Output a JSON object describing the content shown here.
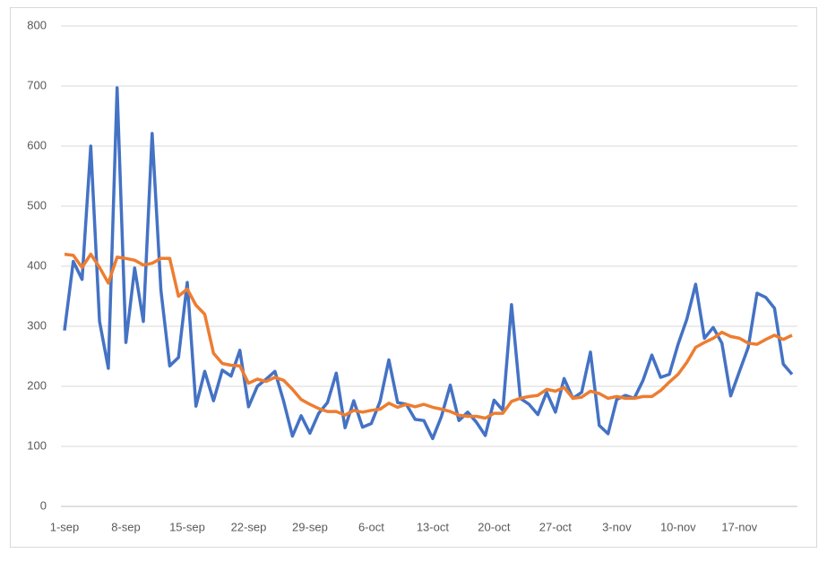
{
  "chart_data": {
    "type": "line",
    "categories": [
      "1-sep",
      null,
      null,
      null,
      null,
      null,
      null,
      "8-sep",
      null,
      null,
      null,
      null,
      null,
      null,
      "15-sep",
      null,
      null,
      null,
      null,
      null,
      null,
      "22-sep",
      null,
      null,
      null,
      null,
      null,
      null,
      "29-sep",
      null,
      null,
      null,
      null,
      null,
      null,
      "6-oct",
      null,
      null,
      null,
      null,
      null,
      null,
      "13-oct",
      null,
      null,
      null,
      null,
      null,
      null,
      "20-oct",
      null,
      null,
      null,
      null,
      null,
      null,
      "27-oct",
      null,
      null,
      null,
      null,
      null,
      null,
      "3-nov",
      null,
      null,
      null,
      null,
      null,
      null,
      "10-nov",
      null,
      null,
      null,
      null,
      null,
      null,
      "17-nov",
      null,
      null,
      null,
      null,
      null,
      null
    ],
    "series": [
      {
        "color": "#4472c4",
        "values": [
          293,
          408,
          378,
          600,
          308,
          230,
          697,
          273,
          397,
          308,
          621,
          360,
          234,
          248,
          373,
          167,
          225,
          176,
          227,
          217,
          260,
          166,
          200,
          212,
          225,
          175,
          117,
          151,
          122,
          155,
          173,
          222,
          131,
          176,
          132,
          138,
          175,
          244,
          173,
          170,
          145,
          143,
          113,
          150,
          202,
          143,
          157,
          140,
          118,
          177,
          160,
          336,
          180,
          170,
          153,
          190,
          157,
          213,
          180,
          190,
          257,
          135,
          121,
          178,
          185,
          180,
          210,
          252,
          215,
          220,
          270,
          312,
          370,
          280,
          298,
          272,
          184,
          225,
          265,
          355,
          348,
          330,
          237,
          220
        ]
      },
      {
        "color": "#ed7d31",
        "values": [
          420,
          418,
          398,
          420,
          398,
          372,
          415,
          413,
          410,
          402,
          405,
          413,
          413,
          350,
          362,
          335,
          320,
          255,
          238,
          235,
          234,
          205,
          212,
          208,
          215,
          210,
          195,
          178,
          170,
          163,
          158,
          158,
          152,
          160,
          157,
          160,
          162,
          172,
          165,
          170,
          166,
          170,
          165,
          162,
          158,
          152,
          150,
          150,
          147,
          155,
          155,
          175,
          180,
          183,
          185,
          195,
          192,
          198,
          180,
          182,
          192,
          188,
          180,
          183,
          180,
          180,
          183,
          183,
          193,
          207,
          220,
          240,
          265,
          273,
          280,
          290,
          283,
          280,
          272,
          270,
          278,
          285,
          278,
          285
        ]
      }
    ],
    "ylim": [
      0,
      800
    ],
    "yticks": [
      0,
      100,
      200,
      300,
      400,
      500,
      600,
      700,
      800
    ],
    "grid": true
  }
}
